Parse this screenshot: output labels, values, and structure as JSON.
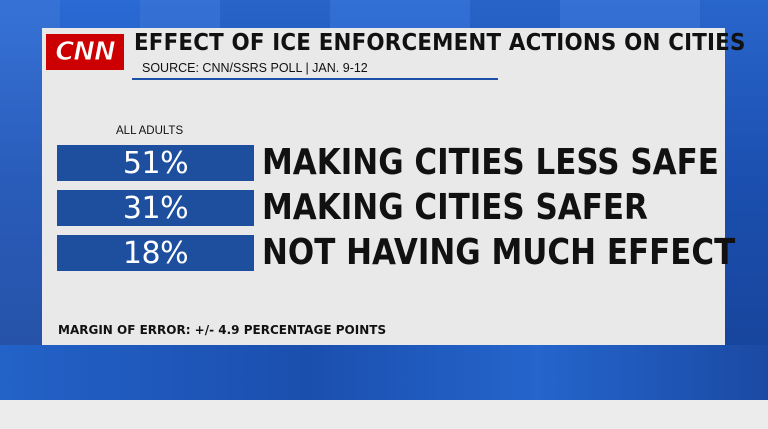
{
  "header": {
    "logo_text": "CNN",
    "title": "EFFECT OF ICE ENFORCEMENT ACTIONS ON CITIES",
    "source": "SOURCE: CNN/SSRS POLL | JAN. 9-12"
  },
  "footnote": "MARGIN OF ERROR: +/- 4.9 PERCENTAGE POINTS",
  "colors": {
    "bar": "#1d4f9e",
    "logo": "#cc0000",
    "panel": "#e9e9ea"
  },
  "chart_data": {
    "type": "bar",
    "series_header": "ALL ADULTS",
    "categories": [
      "MAKING CITIES LESS SAFE",
      "MAKING CITIES SAFER",
      "NOT HAVING MUCH EFFECT"
    ],
    "values": [
      51,
      31,
      18
    ],
    "value_labels": [
      "51%",
      "31%",
      "18%"
    ],
    "unit": "%"
  }
}
